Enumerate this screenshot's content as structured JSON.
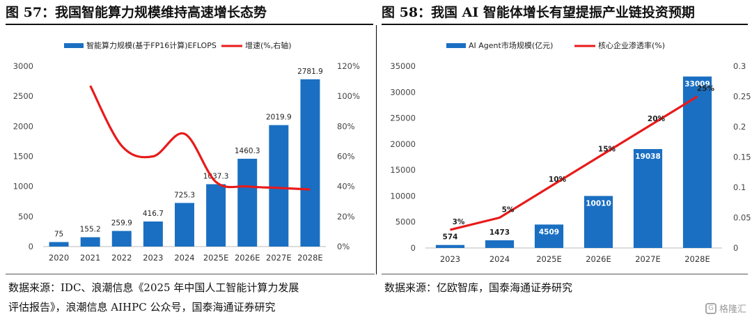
{
  "left": {
    "title": "图 57：我国智能算力规模维持高速增长态势",
    "source_line1": "数据来源：IDC、浪潮信息《2025 年中国人工智能计算力发展",
    "source_line2": "评估报告》，浪潮信息 AIHPC 公众号，国泰海通证券研究"
  },
  "right": {
    "title": "图 58：我国 AI 智能体增长有望提振产业链投资预期",
    "source_line1": "数据来源：亿欧智库，国泰海通证券研究"
  },
  "watermark": {
    "icon": "G",
    "text": "格隆汇"
  },
  "colors": {
    "bar": "#1a6fc2",
    "line": "#e81a1a"
  },
  "chart_data": [
    {
      "type": "bar",
      "categories": [
        "2020",
        "2021",
        "2022",
        "2023",
        "2024",
        "2025E",
        "2026E",
        "2027E",
        "2028E"
      ],
      "series": [
        {
          "name": "智能算力规模(基于FP16计算)EFLOPS",
          "kind": "bar",
          "axis": "left",
          "values": [
            75,
            155.2,
            259.9,
            416.7,
            725.3,
            1037.3,
            1460.3,
            2019.9,
            2781.9
          ],
          "labels": [
            "75",
            "155.2",
            "259.9",
            "416.7",
            "725.3",
            "1037.3",
            "1460.3",
            "2019.9",
            "2781.9"
          ]
        },
        {
          "name": "增速(%,右轴)",
          "kind": "line",
          "axis": "right",
          "values": [
            null,
            107,
            67,
            60,
            75,
            43,
            40,
            39,
            38
          ]
        }
      ],
      "yleft": {
        "lim": [
          0,
          3000
        ],
        "ticks": [
          0,
          500,
          1000,
          1500,
          2000,
          2500,
          3000
        ],
        "tick_labels": [
          "0",
          "500",
          "1000",
          "1500",
          "2000",
          "2500",
          "3000"
        ]
      },
      "yright": {
        "lim": [
          0,
          120
        ],
        "ticks": [
          0,
          20,
          40,
          60,
          80,
          100,
          120
        ],
        "tick_labels": [
          "0%",
          "20%",
          "40%",
          "60%",
          "80%",
          "100%",
          "120%"
        ]
      },
      "legend": "top",
      "grid": false
    },
    {
      "type": "bar",
      "categories": [
        "2023",
        "2024",
        "2025E",
        "2026E",
        "2027E",
        "2028E"
      ],
      "series": [
        {
          "name": "AI Agent市场规模(亿元)",
          "kind": "bar",
          "axis": "left",
          "values": [
            574,
            1473,
            4509,
            10010,
            19038,
            33009
          ],
          "labels": [
            "574",
            "1473",
            "4509",
            "10010",
            "19038",
            "33009"
          ]
        },
        {
          "name": "核心企业渗透率(%)",
          "kind": "line",
          "axis": "right",
          "values": [
            0.03,
            0.05,
            0.1,
            0.15,
            0.2,
            0.25
          ],
          "labels": [
            "3%",
            "5%",
            "10%",
            "15%",
            "20%",
            "25%"
          ]
        }
      ],
      "yleft": {
        "lim": [
          0,
          35000
        ],
        "ticks": [
          0,
          5000,
          10000,
          15000,
          20000,
          25000,
          30000,
          35000
        ],
        "tick_labels": [
          "0",
          "5000",
          "10000",
          "15000",
          "20000",
          "25000",
          "30000",
          "35000"
        ]
      },
      "yright": {
        "lim": [
          0,
          0.3
        ],
        "ticks": [
          0,
          0.05,
          0.1,
          0.15,
          0.2,
          0.25,
          0.3
        ],
        "tick_labels": [
          "0",
          "0.05",
          "0.1",
          "0.15",
          "0.2",
          "0.25",
          "0.3"
        ]
      },
      "legend": "top",
      "grid": false
    }
  ]
}
